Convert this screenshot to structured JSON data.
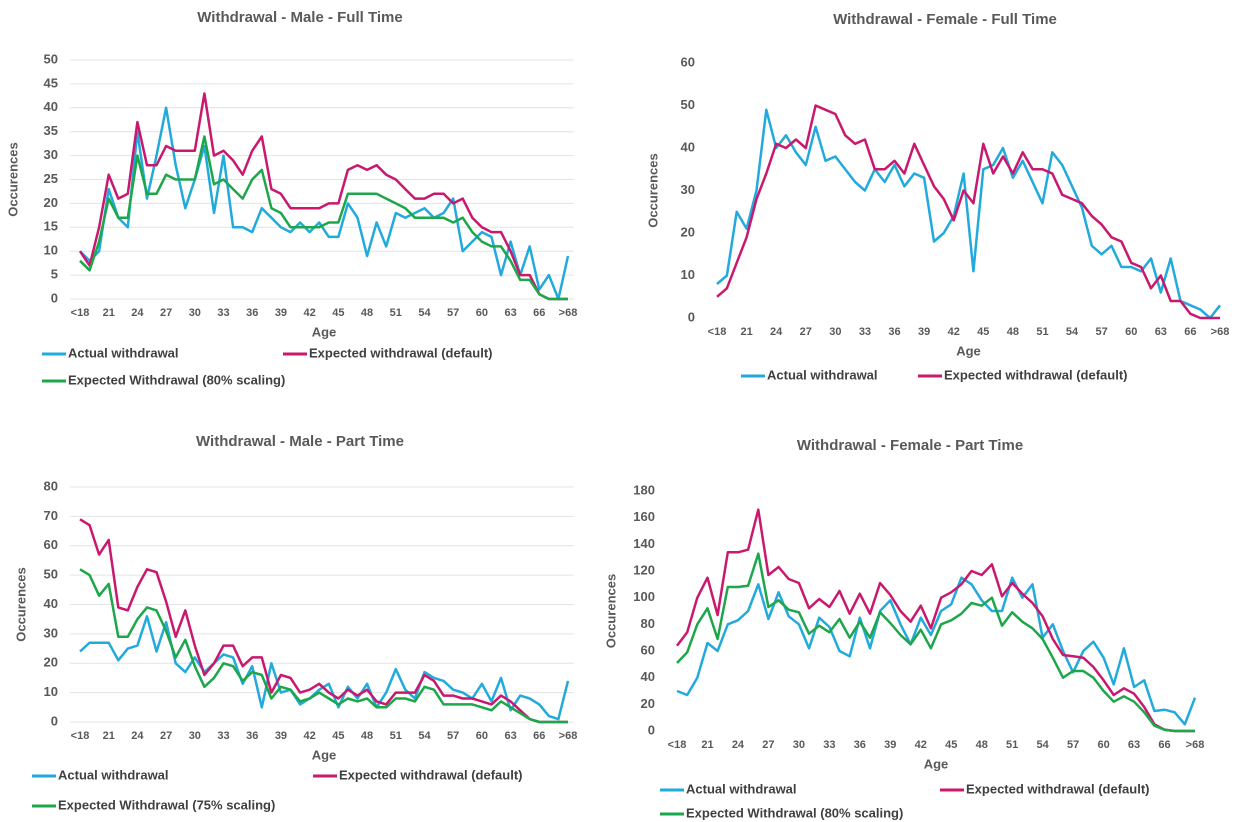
{
  "chart_data": [
    {
      "type": "line",
      "title": "Withdrawal - Male - Full Time",
      "x_label": "Age",
      "y_label": "Occurences",
      "categories": [
        "<18",
        null,
        null,
        "21",
        null,
        null,
        "24",
        null,
        null,
        "27",
        null,
        null,
        "30",
        null,
        null,
        "33",
        null,
        null,
        "36",
        null,
        null,
        "39",
        null,
        null,
        "42",
        null,
        null,
        "45",
        null,
        null,
        "48",
        null,
        null,
        "51",
        null,
        null,
        "54",
        null,
        null,
        "57",
        null,
        null,
        "60",
        null,
        null,
        "63",
        null,
        null,
        "66",
        null,
        null,
        ">68"
      ],
      "ylim": [
        0,
        50
      ],
      "yticks": [
        0,
        5,
        10,
        15,
        20,
        25,
        30,
        35,
        40,
        45,
        50
      ],
      "grid": true,
      "series": [
        {
          "name": "Actual withdrawal",
          "color": "#22aadd",
          "values": [
            10,
            8,
            10,
            23,
            17,
            15,
            35,
            21,
            30,
            40,
            28,
            19,
            25,
            32,
            18,
            30,
            15,
            15,
            14,
            19,
            17,
            15,
            14,
            16,
            14,
            16,
            13,
            13,
            20,
            17,
            9,
            16,
            11,
            18,
            17,
            18,
            19,
            17,
            18,
            21,
            10,
            12,
            14,
            13,
            5,
            12,
            5,
            11,
            2,
            5,
            0,
            9
          ]
        },
        {
          "name": "Expected withdrawal (default)",
          "color": "#c8196e",
          "values": [
            10,
            7,
            15,
            26,
            21,
            22,
            37,
            28,
            28,
            32,
            31,
            31,
            31,
            43,
            30,
            31,
            29,
            26,
            31,
            34,
            23,
            22,
            19,
            19,
            19,
            19,
            20,
            20,
            27,
            28,
            27,
            28,
            26,
            25,
            23,
            21,
            21,
            22,
            22,
            20,
            21,
            17,
            15,
            14,
            14,
            10,
            5,
            5,
            1,
            0,
            0,
            0
          ]
        },
        {
          "name": "Expected Withdrawal (80% scaling)",
          "color": "#1ea64b",
          "values": [
            8,
            6,
            12,
            21,
            17,
            17,
            30,
            22,
            22,
            26,
            25,
            25,
            25,
            34,
            24,
            25,
            23,
            21,
            25,
            27,
            19,
            18,
            15,
            15,
            15,
            15,
            16,
            16,
            22,
            22,
            22,
            22,
            21,
            20,
            19,
            17,
            17,
            17,
            17,
            16,
            17,
            14,
            12,
            11,
            11,
            8,
            4,
            4,
            1,
            0,
            0,
            0
          ]
        }
      ]
    },
    {
      "type": "line",
      "title": "Withdrawal - Female - Full Time",
      "x_label": "Age",
      "y_label": "Occurences",
      "categories": [
        "<18",
        null,
        null,
        "21",
        null,
        null,
        "24",
        null,
        null,
        "27",
        null,
        null,
        "30",
        null,
        null,
        "33",
        null,
        null,
        "36",
        null,
        null,
        "39",
        null,
        null,
        "42",
        null,
        null,
        "45",
        null,
        null,
        "48",
        null,
        null,
        "51",
        null,
        null,
        "54",
        null,
        null,
        "57",
        null,
        null,
        "60",
        null,
        null,
        "63",
        null,
        null,
        "66",
        null,
        null,
        ">68"
      ],
      "ylim": [
        0,
        60
      ],
      "yticks": [
        0,
        10,
        20,
        30,
        40,
        50,
        60
      ],
      "grid": false,
      "series": [
        {
          "name": "Actual withdrawal",
          "color": "#22aadd",
          "values": [
            8,
            10,
            25,
            21,
            30,
            49,
            40,
            43,
            39,
            36,
            45,
            37,
            38,
            35,
            32,
            30,
            35,
            32,
            36,
            31,
            34,
            33,
            18,
            20,
            24,
            34,
            11,
            35,
            36,
            40,
            33,
            37,
            32,
            27,
            39,
            36,
            31,
            26,
            17,
            15,
            17,
            12,
            12,
            11,
            14,
            6,
            14,
            4,
            3,
            2,
            0,
            3
          ]
        },
        {
          "name": "Expected withdrawal (default)",
          "color": "#c8196e",
          "values": [
            5,
            7,
            13,
            19,
            28,
            34,
            41,
            40,
            42,
            40,
            50,
            49,
            48,
            43,
            41,
            42,
            35,
            35,
            37,
            34,
            41,
            36,
            31,
            28,
            23,
            30,
            27,
            41,
            34,
            38,
            34,
            39,
            35,
            35,
            34,
            29,
            28,
            27,
            24,
            22,
            19,
            18,
            13,
            12,
            7,
            10,
            4,
            4,
            1,
            0,
            0,
            0
          ]
        }
      ]
    },
    {
      "type": "line",
      "title": "Withdrawal - Male - Part Time",
      "x_label": "Age",
      "y_label": "Occurences",
      "categories": [
        "<18",
        null,
        null,
        "21",
        null,
        null,
        "24",
        null,
        null,
        "27",
        null,
        null,
        "30",
        null,
        null,
        "33",
        null,
        null,
        "36",
        null,
        null,
        "39",
        null,
        null,
        "42",
        null,
        null,
        "45",
        null,
        null,
        "48",
        null,
        null,
        "51",
        null,
        null,
        "54",
        null,
        null,
        "57",
        null,
        null,
        "60",
        null,
        null,
        "63",
        null,
        null,
        "66",
        null,
        null,
        ">68"
      ],
      "ylim": [
        0,
        80
      ],
      "yticks": [
        0,
        10,
        20,
        30,
        40,
        50,
        60,
        70,
        80
      ],
      "grid": true,
      "series": [
        {
          "name": "Actual withdrawal",
          "color": "#22aadd",
          "values": [
            24,
            27,
            27,
            27,
            21,
            25,
            26,
            36,
            24,
            34,
            20,
            17,
            22,
            17,
            20,
            23,
            22,
            13,
            19,
            5,
            20,
            10,
            11,
            6,
            8,
            11,
            13,
            5,
            12,
            8,
            13,
            5,
            10,
            18,
            11,
            8,
            17,
            15,
            14,
            11,
            10,
            8,
            13,
            7,
            15,
            4,
            9,
            8,
            6,
            2,
            1,
            14
          ]
        },
        {
          "name": "Expected withdrawal (default)",
          "color": "#c8196e",
          "values": [
            69,
            67,
            57,
            62,
            39,
            38,
            46,
            52,
            51,
            41,
            29,
            38,
            26,
            16,
            20,
            26,
            26,
            19,
            22,
            22,
            10,
            16,
            15,
            10,
            11,
            13,
            10,
            8,
            11,
            9,
            11,
            7,
            6,
            10,
            10,
            10,
            16,
            14,
            9,
            9,
            8,
            8,
            7,
            6,
            9,
            7,
            4,
            1,
            0,
            0,
            0,
            0
          ]
        },
        {
          "name": "Expected Withdrawal (75% scaling)",
          "color": "#1ea64b",
          "values": [
            52,
            50,
            43,
            47,
            29,
            29,
            35,
            39,
            38,
            31,
            22,
            28,
            19,
            12,
            15,
            20,
            19,
            14,
            17,
            16,
            8,
            12,
            11,
            7,
            8,
            10,
            8,
            6,
            8,
            7,
            8,
            5,
            5,
            8,
            8,
            7,
            12,
            11,
            6,
            6,
            6,
            6,
            5,
            4,
            7,
            5,
            3,
            1,
            0,
            0,
            0,
            0
          ]
        }
      ]
    },
    {
      "type": "line",
      "title": "Withdrawal - Female - Part Time",
      "x_label": "Age",
      "y_label": "Occurences",
      "categories": [
        "<18",
        null,
        null,
        "21",
        null,
        null,
        "24",
        null,
        null,
        "27",
        null,
        null,
        "30",
        null,
        null,
        "33",
        null,
        null,
        "36",
        null,
        null,
        "39",
        null,
        null,
        "42",
        null,
        null,
        "45",
        null,
        null,
        "48",
        null,
        null,
        "51",
        null,
        null,
        "54",
        null,
        null,
        "57",
        null,
        null,
        "60",
        null,
        null,
        "63",
        null,
        null,
        "66",
        null,
        null,
        ">68"
      ],
      "ylim": [
        0,
        180
      ],
      "yticks": [
        0,
        20,
        40,
        60,
        80,
        100,
        120,
        140,
        160,
        180
      ],
      "grid": false,
      "series": [
        {
          "name": "Actual withdrawal",
          "color": "#22aadd",
          "values": [
            30,
            27,
            40,
            66,
            60,
            80,
            83,
            90,
            110,
            84,
            104,
            86,
            80,
            62,
            85,
            78,
            60,
            56,
            85,
            62,
            90,
            98,
            80,
            65,
            85,
            72,
            90,
            95,
            115,
            110,
            98,
            90,
            90,
            115,
            100,
            110,
            70,
            80,
            60,
            44,
            60,
            67,
            55,
            35,
            62,
            33,
            38,
            15,
            16,
            14,
            5,
            25
          ]
        },
        {
          "name": "Expected withdrawal (default)",
          "color": "#c8196e",
          "values": [
            64,
            74,
            100,
            115,
            87,
            134,
            134,
            136,
            166,
            117,
            123,
            114,
            111,
            92,
            99,
            93,
            105,
            88,
            103,
            88,
            111,
            102,
            90,
            82,
            94,
            77,
            100,
            104,
            110,
            120,
            117,
            125,
            101,
            111,
            103,
            96,
            86,
            69,
            57,
            56,
            55,
            48,
            38,
            27,
            32,
            28,
            18,
            5,
            1,
            0,
            0,
            0
          ]
        },
        {
          "name": "Expected Withdrawal (80% scaling)",
          "color": "#1ea64b",
          "values": [
            51,
            59,
            80,
            92,
            69,
            108,
            108,
            109,
            133,
            93,
            98,
            91,
            89,
            73,
            79,
            74,
            84,
            70,
            82,
            70,
            89,
            81,
            72,
            65,
            76,
            62,
            80,
            83,
            88,
            96,
            94,
            100,
            79,
            89,
            82,
            77,
            69,
            55,
            40,
            45,
            45,
            40,
            30,
            22,
            26,
            22,
            14,
            4,
            1,
            0,
            0,
            0
          ]
        }
      ]
    }
  ]
}
